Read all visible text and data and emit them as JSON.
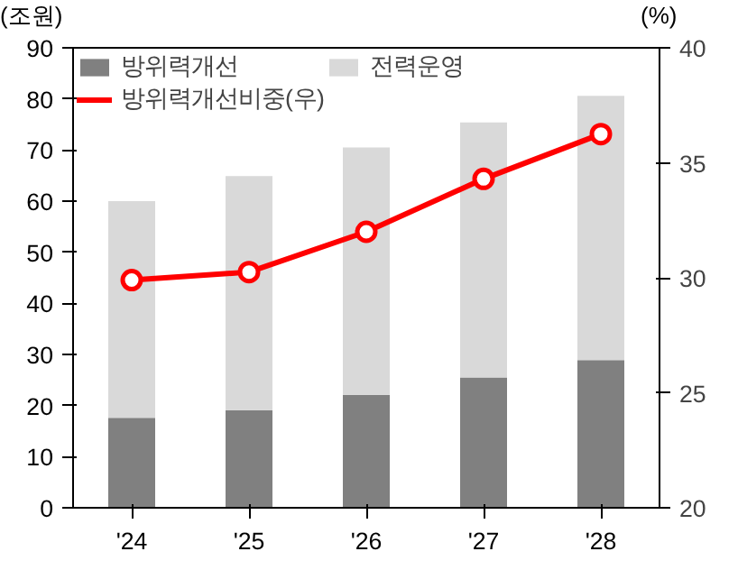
{
  "chart_data": {
    "type": "bar",
    "stacked": true,
    "categories": [
      "'24",
      "'25",
      "'26",
      "'27",
      "'28"
    ],
    "series": [
      {
        "name": "방위력개선",
        "color": "#808080",
        "values": [
          17.6,
          19.1,
          22.1,
          25.5,
          28.9
        ]
      },
      {
        "name": "전력운영",
        "color": "#d9d9d9",
        "values": [
          42.4,
          45.8,
          48.4,
          49.9,
          51.7
        ]
      },
      {
        "name": "방위력개선비중(우)",
        "type": "line",
        "axis": "y2",
        "color": "#ff0000",
        "marker": "circle",
        "values": [
          29.9,
          30.25,
          32.0,
          34.3,
          36.25
        ]
      }
    ],
    "ylabel": "(조원)",
    "y2label": "(%)",
    "ylim": [
      0,
      90
    ],
    "yticks": [
      0,
      10,
      20,
      30,
      40,
      50,
      60,
      70,
      80,
      90
    ],
    "y2lim": [
      20,
      40
    ],
    "y2ticks": [
      20,
      25,
      30,
      35,
      40
    ],
    "grid": false,
    "legend": "top left"
  }
}
